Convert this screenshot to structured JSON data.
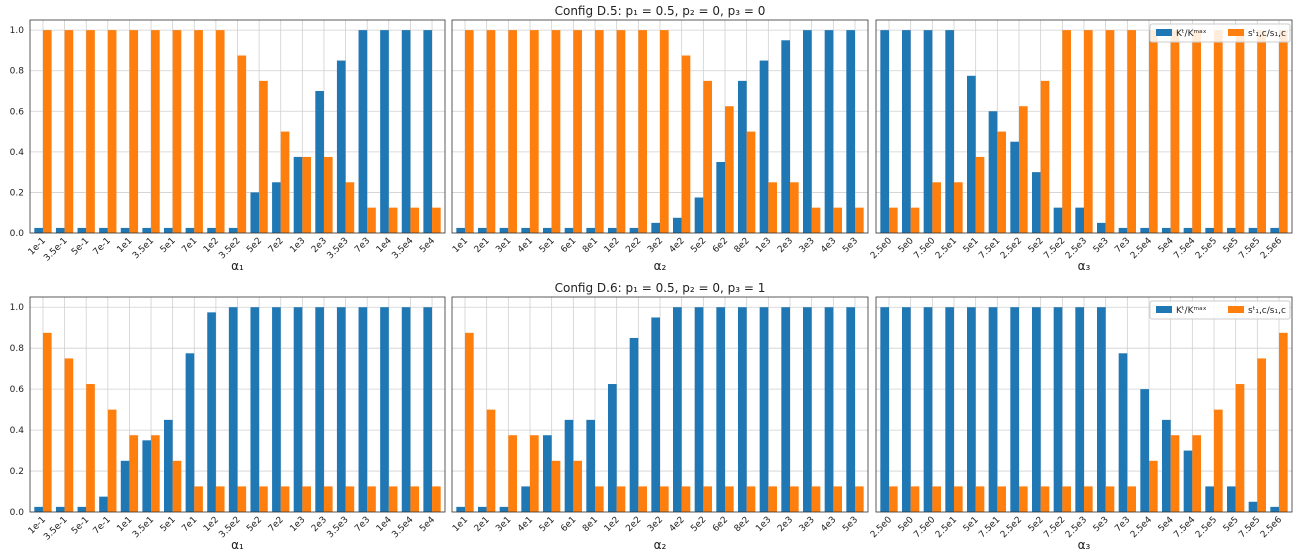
{
  "chart_data": [
    {
      "type": "bar",
      "xlabel": "α₁",
      "categories": [
        "1e-1",
        "3.5e-1",
        "5e-1",
        "7e-1",
        "1e1",
        "3.5e1",
        "5e1",
        "7e1",
        "1e2",
        "3.5e2",
        "5e2",
        "7e2",
        "1e3",
        "2e3",
        "3.5e3",
        "7e3",
        "1e4",
        "3.5e4",
        "5e4"
      ],
      "series": [
        {
          "color": "#1f77b4",
          "values": [
            0.025,
            0.025,
            0.025,
            0.025,
            0.025,
            0.025,
            0.025,
            0.025,
            0.025,
            0.025,
            0.2,
            0.25,
            0.375,
            0.7,
            0.85,
            1,
            1,
            1,
            1
          ]
        },
        {
          "color": "#ff7f0e",
          "values": [
            1,
            1,
            1,
            1,
            1,
            1,
            1,
            1,
            1,
            0.875,
            0.75,
            0.5,
            0.375,
            0.375,
            0.25,
            0.125,
            0.125,
            0.125,
            0.125
          ]
        }
      ],
      "ylim": [
        0,
        1.05
      ],
      "yticks": [
        {
          "value": 0,
          "label": "0.0"
        },
        0.2,
        0.4,
        0.6,
        0.8,
        {
          "value": 1,
          "label": "1.0"
        }
      ],
      "grid": true
    },
    {
      "type": "bar",
      "title": "Config D.5: p₁ = 0.5, p₂ = 0, p₃ = 0",
      "xlabel": "α₂",
      "categories": [
        "1e1",
        "2e1",
        "3e1",
        "4e1",
        "5e1",
        "6e1",
        "8e1",
        "1e2",
        "2e2",
        "3e2",
        "4e2",
        "5e2",
        "6e2",
        "8e2",
        "1e3",
        "2e3",
        "3e3",
        "4e3",
        "5e3"
      ],
      "series": [
        {
          "color": "#1f77b4",
          "values": [
            0.025,
            0.025,
            0.025,
            0.025,
            0.025,
            0.025,
            0.025,
            0.025,
            0.025,
            0.05,
            0.075,
            0.175,
            0.35,
            0.75,
            0.85,
            0.95,
            1,
            1,
            1
          ]
        },
        {
          "color": "#ff7f0e",
          "values": [
            1,
            1,
            1,
            1,
            1,
            1,
            1,
            1,
            1,
            1,
            0.875,
            0.75,
            0.625,
            0.5,
            0.25,
            0.25,
            0.125,
            0.125,
            0.125
          ]
        }
      ],
      "ylim": [
        0,
        1.05
      ],
      "grid": true
    },
    {
      "type": "bar",
      "xlabel": "α₃",
      "legend": "upper right",
      "categories": [
        "2.5e0",
        "5e0",
        "7.5e0",
        "2.5e1",
        "5e1",
        "7.5e1",
        "2.5e2",
        "5e2",
        "7.5e2",
        "2.5e3",
        "5e3",
        "7e3",
        "2.5e4",
        "5e4",
        "7.5e4",
        "2.5e5",
        "5e5",
        "7.5e5",
        "2.5e6"
      ],
      "series": [
        {
          "name": "Kᵗ/Kᵐᵃˣ",
          "color": "#1f77b4",
          "values": [
            1,
            1,
            1,
            1,
            0.775,
            0.6,
            0.45,
            0.3,
            0.125,
            0.125,
            0.05,
            0.025,
            0.025,
            0.025,
            0.025,
            0.025,
            0.025,
            0.025,
            0.025
          ]
        },
        {
          "name": "sᵗ₁,c/s₁,c",
          "color": "#ff7f0e",
          "values": [
            0.125,
            0.125,
            0.25,
            0.25,
            0.375,
            0.5,
            0.625,
            0.75,
            1,
            1,
            1,
            1,
            1,
            1,
            1,
            1,
            1,
            1,
            1
          ]
        }
      ],
      "ylim": [
        0,
        1.05
      ],
      "grid": true
    },
    {
      "type": "bar",
      "xlabel": "α₁",
      "categories": [
        "1e-1",
        "3.5e-1",
        "5e-1",
        "7e-1",
        "1e1",
        "3.5e1",
        "5e1",
        "7e1",
        "1e2",
        "3.5e2",
        "5e2",
        "7e2",
        "1e3",
        "2e3",
        "3.5e3",
        "7e3",
        "1e4",
        "3.5e4",
        "5e4"
      ],
      "series": [
        {
          "color": "#1f77b4",
          "values": [
            0.025,
            0.025,
            0.025,
            0.075,
            0.25,
            0.35,
            0.45,
            0.775,
            0.975,
            1,
            1,
            1,
            1,
            1,
            1,
            1,
            1,
            1,
            1
          ]
        },
        {
          "color": "#ff7f0e",
          "values": [
            0.875,
            0.75,
            0.625,
            0.5,
            0.375,
            0.375,
            0.25,
            0.125,
            0.125,
            0.125,
            0.125,
            0.125,
            0.125,
            0.125,
            0.125,
            0.125,
            0.125,
            0.125,
            0.125
          ]
        }
      ],
      "ylim": [
        0,
        1.05
      ],
      "yticks": [
        {
          "value": 0,
          "label": "0.0"
        },
        0.2,
        0.4,
        0.6,
        0.8,
        {
          "value": 1,
          "label": "1.0"
        }
      ],
      "grid": true
    },
    {
      "type": "bar",
      "title": "Config D.6: p₁ = 0.5, p₂ = 0, p₃ = 1",
      "xlabel": "α₂",
      "categories": [
        "1e1",
        "2e1",
        "3e1",
        "4e1",
        "5e1",
        "6e1",
        "8e1",
        "1e2",
        "2e2",
        "3e2",
        "4e2",
        "5e2",
        "6e2",
        "8e2",
        "1e3",
        "2e3",
        "3e3",
        "4e3",
        "5e3"
      ],
      "series": [
        {
          "color": "#1f77b4",
          "values": [
            0.025,
            0.025,
            0.025,
            0.125,
            0.375,
            0.45,
            0.45,
            0.625,
            0.85,
            0.95,
            1,
            1,
            1,
            1,
            1,
            1,
            1,
            1,
            1
          ]
        },
        {
          "color": "#ff7f0e",
          "values": [
            0.875,
            0.5,
            0.375,
            0.375,
            0.25,
            0.25,
            0.125,
            0.125,
            0.125,
            0.125,
            0.125,
            0.125,
            0.125,
            0.125,
            0.125,
            0.125,
            0.125,
            0.125,
            0.125
          ]
        }
      ],
      "ylim": [
        0,
        1.05
      ],
      "grid": true
    },
    {
      "type": "bar",
      "xlabel": "α₃",
      "legend": "upper right",
      "categories": [
        "2.5e0",
        "5e0",
        "7.5e0",
        "2.5e1",
        "5e1",
        "7.5e1",
        "2.5e2",
        "5e2",
        "7.5e2",
        "2.5e3",
        "5e3",
        "7e3",
        "2.5e4",
        "5e4",
        "7.5e4",
        "2.5e5",
        "5e5",
        "7.5e5",
        "2.5e6"
      ],
      "series": [
        {
          "name": "Kᵗ/Kᵐᵃˣ",
          "color": "#1f77b4",
          "values": [
            1,
            1,
            1,
            1,
            1,
            1,
            1,
            1,
            1,
            1,
            1,
            0.775,
            0.6,
            0.45,
            0.3,
            0.125,
            0.125,
            0.05,
            0.025
          ]
        },
        {
          "name": "sᵗ₁,c/s₁,c",
          "color": "#ff7f0e",
          "values": [
            0.125,
            0.125,
            0.125,
            0.125,
            0.125,
            0.125,
            0.125,
            0.125,
            0.125,
            0.125,
            0.125,
            0.125,
            0.25,
            0.375,
            0.375,
            0.5,
            0.625,
            0.75,
            0.875
          ]
        }
      ],
      "ylim": [
        0,
        1.05
      ],
      "grid": true
    }
  ]
}
